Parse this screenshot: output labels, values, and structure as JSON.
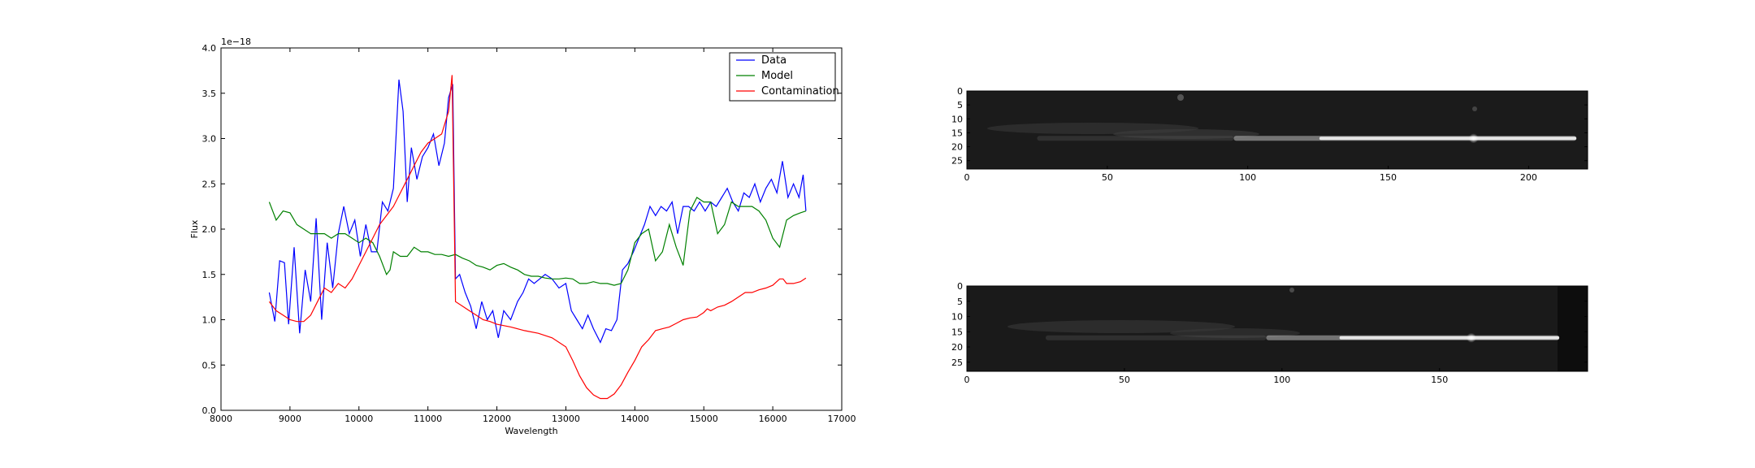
{
  "chart_data": [
    {
      "type": "line",
      "title": "",
      "xlabel": "Wavelength",
      "ylabel": "Flux",
      "offset_text": "1e−18",
      "xlim": [
        8000,
        17000
      ],
      "ylim": [
        0.0,
        4.0
      ],
      "xticks": [
        8000,
        9000,
        10000,
        11000,
        12000,
        13000,
        14000,
        15000,
        16000,
        17000
      ],
      "yticks": [
        "0.0",
        "0.5",
        "1.0",
        "1.5",
        "2.0",
        "2.5",
        "3.0",
        "3.5",
        "4.0"
      ],
      "grid": false,
      "legend": {
        "placement": "top-right",
        "entries": [
          "Data",
          "Model",
          "Contamination"
        ]
      },
      "series": [
        {
          "name": "Data",
          "color": "#0000ff",
          "points": [
            [
              8700,
              1.3
            ],
            [
              8780,
              0.98
            ],
            [
              8850,
              1.65
            ],
            [
              8920,
              1.63
            ],
            [
              8980,
              0.95
            ],
            [
              9060,
              1.8
            ],
            [
              9140,
              0.85
            ],
            [
              9220,
              1.55
            ],
            [
              9300,
              1.2
            ],
            [
              9380,
              2.12
            ],
            [
              9460,
              1.0
            ],
            [
              9540,
              1.85
            ],
            [
              9620,
              1.35
            ],
            [
              9700,
              1.95
            ],
            [
              9780,
              2.25
            ],
            [
              9860,
              1.95
            ],
            [
              9940,
              2.1
            ],
            [
              10020,
              1.7
            ],
            [
              10100,
              2.05
            ],
            [
              10180,
              1.75
            ],
            [
              10260,
              1.75
            ],
            [
              10340,
              2.3
            ],
            [
              10420,
              2.2
            ],
            [
              10500,
              2.45
            ],
            [
              10580,
              3.65
            ],
            [
              10640,
              3.3
            ],
            [
              10700,
              2.3
            ],
            [
              10760,
              2.9
            ],
            [
              10840,
              2.55
            ],
            [
              10920,
              2.8
            ],
            [
              11000,
              2.9
            ],
            [
              11080,
              3.05
            ],
            [
              11160,
              2.7
            ],
            [
              11240,
              2.95
            ],
            [
              11300,
              3.45
            ],
            [
              11360,
              3.6
            ],
            [
              11400,
              1.45
            ],
            [
              11460,
              1.5
            ],
            [
              11540,
              1.3
            ],
            [
              11620,
              1.15
            ],
            [
              11700,
              0.9
            ],
            [
              11780,
              1.2
            ],
            [
              11860,
              1.0
            ],
            [
              11940,
              1.1
            ],
            [
              12020,
              0.8
            ],
            [
              12100,
              1.1
            ],
            [
              12200,
              1.0
            ],
            [
              12300,
              1.2
            ],
            [
              12380,
              1.3
            ],
            [
              12460,
              1.45
            ],
            [
              12540,
              1.4
            ],
            [
              12620,
              1.45
            ],
            [
              12700,
              1.5
            ],
            [
              12800,
              1.45
            ],
            [
              12900,
              1.35
            ],
            [
              13000,
              1.4
            ],
            [
              13080,
              1.1
            ],
            [
              13160,
              1.0
            ],
            [
              13240,
              0.9
            ],
            [
              13320,
              1.05
            ],
            [
              13400,
              0.9
            ],
            [
              13500,
              0.75
            ],
            [
              13580,
              0.9
            ],
            [
              13660,
              0.88
            ],
            [
              13740,
              1.0
            ],
            [
              13820,
              1.55
            ],
            [
              13900,
              1.62
            ],
            [
              13980,
              1.75
            ],
            [
              14060,
              1.9
            ],
            [
              14140,
              2.05
            ],
            [
              14220,
              2.25
            ],
            [
              14300,
              2.15
            ],
            [
              14380,
              2.25
            ],
            [
              14460,
              2.2
            ],
            [
              14540,
              2.3
            ],
            [
              14620,
              1.95
            ],
            [
              14700,
              2.25
            ],
            [
              14780,
              2.25
            ],
            [
              14860,
              2.2
            ],
            [
              14940,
              2.3
            ],
            [
              15020,
              2.2
            ],
            [
              15100,
              2.3
            ],
            [
              15180,
              2.25
            ],
            [
              15260,
              2.35
            ],
            [
              15340,
              2.45
            ],
            [
              15420,
              2.3
            ],
            [
              15500,
              2.2
            ],
            [
              15580,
              2.4
            ],
            [
              15660,
              2.35
            ],
            [
              15740,
              2.5
            ],
            [
              15820,
              2.3
            ],
            [
              15900,
              2.45
            ],
            [
              15980,
              2.55
            ],
            [
              16060,
              2.4
            ],
            [
              16140,
              2.75
            ],
            [
              16220,
              2.35
            ],
            [
              16300,
              2.5
            ],
            [
              16380,
              2.35
            ],
            [
              16440,
              2.6
            ],
            [
              16480,
              2.2
            ]
          ]
        },
        {
          "name": "Model",
          "color": "#008000",
          "points": [
            [
              8700,
              2.3
            ],
            [
              8800,
              2.1
            ],
            [
              8900,
              2.2
            ],
            [
              9000,
              2.18
            ],
            [
              9100,
              2.05
            ],
            [
              9200,
              2.0
            ],
            [
              9300,
              1.95
            ],
            [
              9400,
              1.95
            ],
            [
              9500,
              1.95
            ],
            [
              9600,
              1.9
            ],
            [
              9700,
              1.95
            ],
            [
              9800,
              1.95
            ],
            [
              9900,
              1.9
            ],
            [
              10000,
              1.85
            ],
            [
              10100,
              1.9
            ],
            [
              10200,
              1.85
            ],
            [
              10300,
              1.7
            ],
            [
              10400,
              1.5
            ],
            [
              10450,
              1.55
            ],
            [
              10500,
              1.75
            ],
            [
              10600,
              1.7
            ],
            [
              10700,
              1.7
            ],
            [
              10800,
              1.8
            ],
            [
              10900,
              1.75
            ],
            [
              11000,
              1.75
            ],
            [
              11100,
              1.72
            ],
            [
              11200,
              1.72
            ],
            [
              11300,
              1.7
            ],
            [
              11400,
              1.72
            ],
            [
              11500,
              1.68
            ],
            [
              11600,
              1.65
            ],
            [
              11700,
              1.6
            ],
            [
              11800,
              1.58
            ],
            [
              11900,
              1.55
            ],
            [
              12000,
              1.6
            ],
            [
              12100,
              1.62
            ],
            [
              12200,
              1.58
            ],
            [
              12300,
              1.55
            ],
            [
              12400,
              1.5
            ],
            [
              12500,
              1.48
            ],
            [
              12600,
              1.48
            ],
            [
              12700,
              1.46
            ],
            [
              12800,
              1.45
            ],
            [
              12900,
              1.45
            ],
            [
              13000,
              1.46
            ],
            [
              13100,
              1.45
            ],
            [
              13200,
              1.4
            ],
            [
              13300,
              1.4
            ],
            [
              13400,
              1.42
            ],
            [
              13500,
              1.4
            ],
            [
              13600,
              1.4
            ],
            [
              13700,
              1.38
            ],
            [
              13800,
              1.4
            ],
            [
              13900,
              1.55
            ],
            [
              14000,
              1.85
            ],
            [
              14100,
              1.95
            ],
            [
              14200,
              2.0
            ],
            [
              14300,
              1.65
            ],
            [
              14400,
              1.75
            ],
            [
              14500,
              2.05
            ],
            [
              14600,
              1.8
            ],
            [
              14700,
              1.6
            ],
            [
              14800,
              2.2
            ],
            [
              14900,
              2.35
            ],
            [
              15000,
              2.3
            ],
            [
              15100,
              2.3
            ],
            [
              15200,
              1.95
            ],
            [
              15300,
              2.05
            ],
            [
              15400,
              2.3
            ],
            [
              15500,
              2.25
            ],
            [
              15600,
              2.25
            ],
            [
              15700,
              2.25
            ],
            [
              15800,
              2.2
            ],
            [
              15900,
              2.1
            ],
            [
              16000,
              1.9
            ],
            [
              16100,
              1.8
            ],
            [
              16200,
              2.1
            ],
            [
              16300,
              2.15
            ],
            [
              16400,
              2.18
            ],
            [
              16480,
              2.2
            ]
          ]
        },
        {
          "name": "Contamination",
          "color": "#ff0000",
          "points": [
            [
              8700,
              1.2
            ],
            [
              8800,
              1.1
            ],
            [
              8900,
              1.05
            ],
            [
              9000,
              1.0
            ],
            [
              9100,
              0.98
            ],
            [
              9200,
              0.98
            ],
            [
              9300,
              1.05
            ],
            [
              9400,
              1.2
            ],
            [
              9500,
              1.35
            ],
            [
              9600,
              1.3
            ],
            [
              9700,
              1.4
            ],
            [
              9800,
              1.35
            ],
            [
              9900,
              1.45
            ],
            [
              10000,
              1.6
            ],
            [
              10100,
              1.75
            ],
            [
              10200,
              1.9
            ],
            [
              10300,
              2.05
            ],
            [
              10400,
              2.15
            ],
            [
              10500,
              2.25
            ],
            [
              10600,
              2.4
            ],
            [
              10700,
              2.55
            ],
            [
              10800,
              2.7
            ],
            [
              10900,
              2.85
            ],
            [
              11000,
              2.95
            ],
            [
              11100,
              3.0
            ],
            [
              11200,
              3.05
            ],
            [
              11300,
              3.3
            ],
            [
              11350,
              3.7
            ],
            [
              11400,
              1.2
            ],
            [
              11500,
              1.15
            ],
            [
              11600,
              1.1
            ],
            [
              11700,
              1.05
            ],
            [
              11800,
              1.0
            ],
            [
              11900,
              0.98
            ],
            [
              12000,
              0.95
            ],
            [
              12200,
              0.92
            ],
            [
              12400,
              0.88
            ],
            [
              12600,
              0.85
            ],
            [
              12800,
              0.8
            ],
            [
              13000,
              0.7
            ],
            [
              13100,
              0.55
            ],
            [
              13200,
              0.38
            ],
            [
              13300,
              0.25
            ],
            [
              13400,
              0.17
            ],
            [
              13500,
              0.13
            ],
            [
              13600,
              0.13
            ],
            [
              13700,
              0.18
            ],
            [
              13800,
              0.28
            ],
            [
              13900,
              0.42
            ],
            [
              14000,
              0.55
            ],
            [
              14100,
              0.7
            ],
            [
              14200,
              0.78
            ],
            [
              14300,
              0.88
            ],
            [
              14400,
              0.9
            ],
            [
              14500,
              0.92
            ],
            [
              14600,
              0.96
            ],
            [
              14700,
              1.0
            ],
            [
              14800,
              1.02
            ],
            [
              14900,
              1.03
            ],
            [
              15000,
              1.08
            ],
            [
              15050,
              1.12
            ],
            [
              15100,
              1.1
            ],
            [
              15200,
              1.14
            ],
            [
              15300,
              1.16
            ],
            [
              15400,
              1.2
            ],
            [
              15500,
              1.25
            ],
            [
              15600,
              1.3
            ],
            [
              15700,
              1.3
            ],
            [
              15800,
              1.33
            ],
            [
              15900,
              1.35
            ],
            [
              16000,
              1.38
            ],
            [
              16100,
              1.45
            ],
            [
              16150,
              1.45
            ],
            [
              16200,
              1.4
            ],
            [
              16300,
              1.4
            ],
            [
              16400,
              1.42
            ],
            [
              16480,
              1.46
            ]
          ]
        }
      ]
    },
    {
      "type": "heatmap",
      "colormap": "gray",
      "xticks": [
        "0",
        "50",
        "100",
        "150",
        "200"
      ],
      "yticks": [
        "0",
        "5",
        "10",
        "15",
        "20",
        "25"
      ],
      "xlim": [
        0,
        221
      ],
      "ylim": [
        28,
        0
      ],
      "trace": {
        "start_x": 95,
        "end_x": 217,
        "row": 17,
        "faint_start_x": 25
      }
    },
    {
      "type": "heatmap",
      "colormap": "gray",
      "xticks": [
        "0",
        "50",
        "100",
        "150"
      ],
      "yticks": [
        "0",
        "5",
        "10",
        "15",
        "20",
        "25"
      ],
      "xlim": [
        0,
        197
      ],
      "ylim": [
        28,
        0
      ],
      "trace": {
        "start_x": 95,
        "end_x": 188,
        "row": 17,
        "faint_start_x": 25
      }
    }
  ]
}
